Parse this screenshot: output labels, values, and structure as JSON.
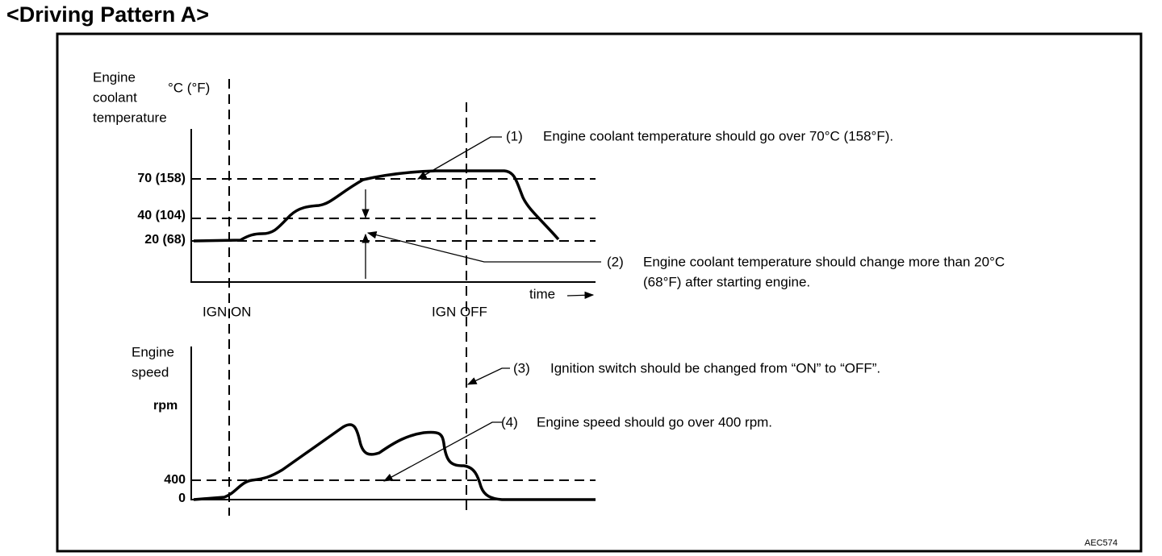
{
  "title": "<Driving Pattern A>",
  "figure_code": "AEC574",
  "upper": {
    "axis_label": [
      "Engine",
      "coolant",
      "temperature"
    ],
    "unit": "°C (°F)",
    "ticks": [
      "70 (158)",
      "40 (104)",
      "20 (68)"
    ],
    "x_label": "time"
  },
  "events": [
    "IGN ON",
    "IGN OFF"
  ],
  "lower": {
    "axis_label": [
      "Engine",
      "speed"
    ],
    "unit": "rpm",
    "ticks": [
      "400",
      "0"
    ]
  },
  "notes": [
    {
      "number": "(1)",
      "lines": [
        "Engine coolant temperature should go over 70°C (158°F)."
      ]
    },
    {
      "number": "(2)",
      "lines": [
        "Engine coolant temperature should change more than 20°C",
        "(68°F) after starting engine."
      ]
    },
    {
      "number": "(3)",
      "lines": [
        "Ignition switch should be changed from “ON” to “OFF”."
      ]
    },
    {
      "number": "(4)",
      "lines": [
        "Engine speed should go over 400 rpm."
      ]
    }
  ]
}
